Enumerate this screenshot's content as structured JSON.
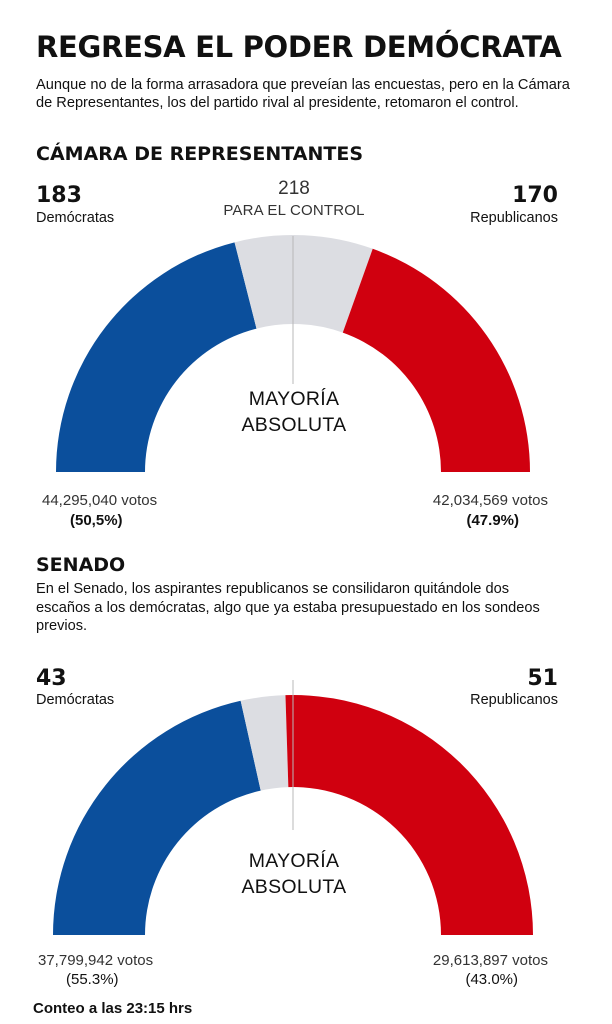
{
  "title": "REGRESA EL PODER DEMÓCRATA",
  "intro": "Aunque no de la forma arrasadora que preveían las encuestas, pero en la Cámara de Representantes, los del partido rival al presidente, retomaron el control.",
  "house": {
    "heading": "CÁMARA DE REPRESENTANTES",
    "dem_seats_label": "183",
    "dem_label": "Demócratas",
    "rep_seats_label": "170",
    "rep_label": "Republicanos",
    "control_num": "218",
    "control_label": "PARA EL CONTROL",
    "majority_line1": "MAYORÍA",
    "majority_line2": "ABSOLUTA",
    "dem_votes": "44,295,040 votos",
    "dem_pct": "(50,5%)",
    "rep_votes": "42,034,569 votos",
    "rep_pct": "(47.9%)"
  },
  "senate": {
    "heading": "SENADO",
    "text": "En el Senado, los aspirantes republicanos se consilidaron quitándole dos escaños a los demócratas, algo que ya estaba presupuestado en los sondeos previos.",
    "dem_seats_label": "43",
    "dem_label": "Demócratas",
    "rep_seats_label": "51",
    "rep_label": "Republicanos",
    "majority_line1": "MAYORÍA",
    "majority_line2": "ABSOLUTA",
    "dem_votes": "37,799,942 votos",
    "dem_pct": "(55.3%)",
    "rep_votes": "29,613,897 votos",
    "rep_pct": "(43.0%)"
  },
  "footer": "Conteo a las 23:15 hrs",
  "colors": {
    "democrat": "#0b4f9c",
    "republican": "#d0000f",
    "undecided": "#dcdde2",
    "divider": "#b8b8b8"
  },
  "chart_data": [
    {
      "type": "pie",
      "title": "CÁMARA DE REPRESENTANTES",
      "categories": [
        "Demócratas",
        "",
        "Republicanos"
      ],
      "values": [
        183,
        82,
        170
      ],
      "total": 435,
      "threshold": 218
    },
    {
      "type": "pie",
      "title": "SENADO",
      "categories": [
        "Demócratas",
        "",
        "Republicanos"
      ],
      "values": [
        43,
        6,
        51
      ],
      "total": 100
    }
  ]
}
